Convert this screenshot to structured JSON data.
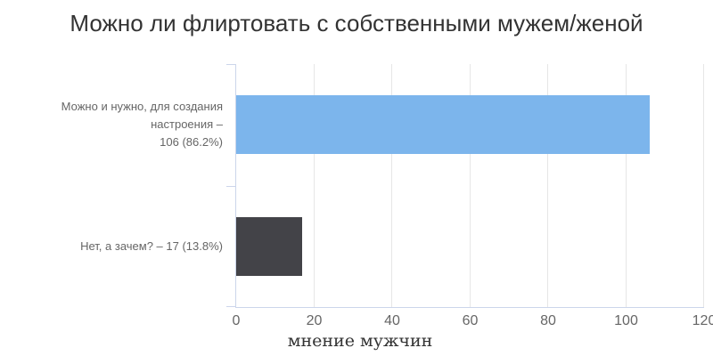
{
  "chart": {
    "title": "Можно ли флиртовать с собственными мужем/женой",
    "x_axis_title": "мнение мужчин"
  },
  "chart_data": {
    "type": "bar",
    "orientation": "horizontal",
    "title": "Можно ли флиртовать с собственными мужем/женой",
    "xlabel": "мнение мужчин",
    "ylabel": "",
    "categories": [
      "Можно и нужно, для создания настроения",
      "Нет, а зачем?"
    ],
    "values": [
      106,
      17
    ],
    "percentages": [
      86.2,
      13.8
    ],
    "category_label_lines": [
      [
        "Можно и нужно, для создания настроения –",
        "106 (86.2%)"
      ],
      [
        "Нет, а зачем? – 17 (13.8%)"
      ]
    ],
    "bar_colors": [
      "#7cb5ec",
      "#434348"
    ],
    "xlim": [
      0,
      120
    ],
    "xticks": [
      0,
      20,
      40,
      60,
      80,
      100,
      120
    ],
    "grid": "vertical-only",
    "legend": "none"
  },
  "colors": {
    "bar_blue": "#7cb5ec",
    "bar_dark_gray": "#434348",
    "gridline": "#e6e6e6",
    "axis_line": "#ccd6eb",
    "tick_text": "#666666",
    "category_text": "#666666",
    "title_text": "#333333"
  }
}
